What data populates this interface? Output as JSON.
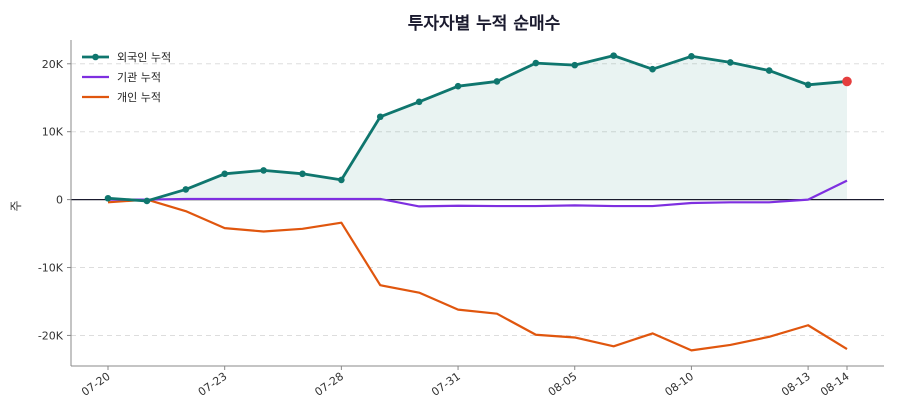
{
  "chart_data": {
    "type": "line",
    "title": "투자자별 누적 순매수",
    "ylabel": "주",
    "xlabel": "",
    "ylim": [
      -24500,
      23500
    ],
    "yticks": [
      20000,
      10000,
      0,
      -10000,
      -20000
    ],
    "ytick_labels": [
      "20K",
      "10K",
      "0",
      "-10K",
      "-20K"
    ],
    "grid": "horizontal-dashed",
    "legend_position": "top-left",
    "x": [
      "07-20",
      "07-21",
      "07-22",
      "07-23",
      "07-24",
      "07-27",
      "07-28",
      "07-29",
      "07-30",
      "07-31",
      "08-03",
      "08-04",
      "08-05",
      "08-06",
      "08-07",
      "08-10",
      "08-11",
      "08-12",
      "08-13",
      "08-14"
    ],
    "xticks": [
      "07-20",
      "07-23",
      "07-28",
      "07-31",
      "08-05",
      "08-10",
      "08-13",
      "08-14"
    ],
    "series": [
      {
        "name": "외국인 누적",
        "color": "#0f766e",
        "markers": true,
        "area_fill": true,
        "last_point_color": "#e53e3e",
        "values": [
          200,
          -200,
          1500,
          3800,
          4300,
          3800,
          2900,
          12200,
          14400,
          16700,
          17400,
          20100,
          19800,
          21200,
          19200,
          21100,
          20200,
          19000,
          16900,
          17400
        ]
      },
      {
        "name": "기관 누적",
        "color": "#7e2fe0",
        "markers": false,
        "values": [
          0,
          0,
          100,
          100,
          100,
          100,
          100,
          100,
          -1000,
          -900,
          -950,
          -950,
          -850,
          -950,
          -950,
          -500,
          -400,
          -400,
          0,
          2800
        ]
      },
      {
        "name": "개인 누적",
        "color": "#e0560e",
        "markers": false,
        "values": [
          -400,
          0,
          -1700,
          -4200,
          -4700,
          -4300,
          -3400,
          -12600,
          -13700,
          -16200,
          -16800,
          -19900,
          -20300,
          -21600,
          -19700,
          -22200,
          -21400,
          -20200,
          -18500,
          -22000
        ]
      }
    ]
  }
}
